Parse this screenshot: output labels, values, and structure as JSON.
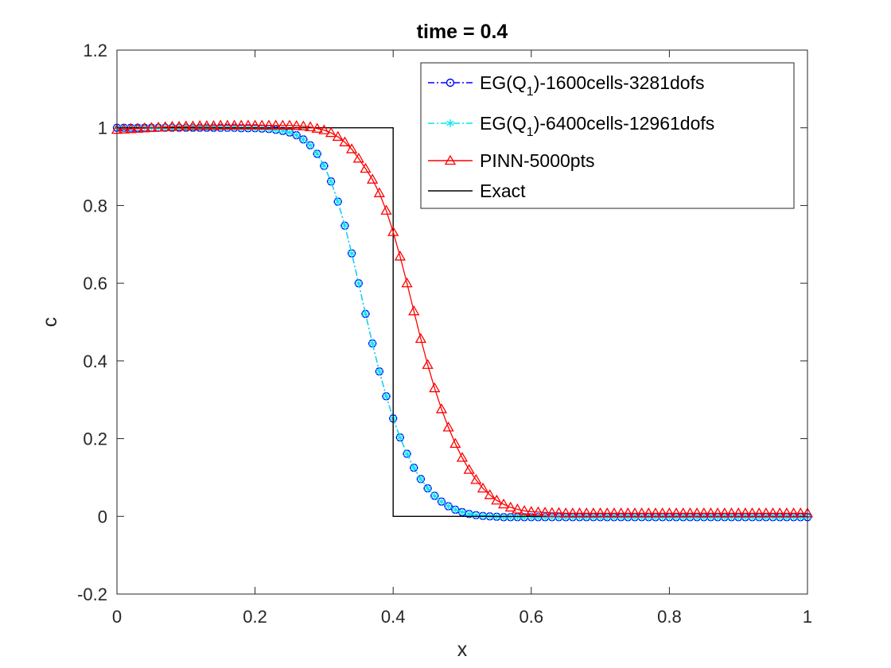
{
  "chart_data": {
    "type": "line",
    "title": "time = 0.4",
    "xlabel": "x",
    "ylabel": "c",
    "xlim": [
      0,
      1
    ],
    "ylim": [
      -0.2,
      1.2
    ],
    "xticks": [
      "0",
      "0.2",
      "0.4",
      "0.6",
      "0.8",
      "1"
    ],
    "yticks": [
      "-0.2",
      "0",
      "0.2",
      "0.4",
      "0.6",
      "0.8",
      "1",
      "1.2"
    ],
    "grid": false,
    "legend_position": "top-right",
    "series": [
      {
        "name": "EG(Q1)-1600cells-3281dofs",
        "legend_label": {
          "prefix": "EG(Q",
          "sub": "1",
          "suffix": ")-1600cells-3281dofs"
        },
        "color": "#0000ff",
        "line_style": "dash-dot",
        "marker": "circle",
        "x": [
          0.0,
          0.01,
          0.02,
          0.03,
          0.04,
          0.05,
          0.06,
          0.07,
          0.08,
          0.09,
          0.1,
          0.11,
          0.12,
          0.13,
          0.14,
          0.15,
          0.16,
          0.17,
          0.18,
          0.19,
          0.2,
          0.21,
          0.22,
          0.23,
          0.24,
          0.25,
          0.26,
          0.27,
          0.28,
          0.29,
          0.3,
          0.31,
          0.32,
          0.33,
          0.34,
          0.35,
          0.36,
          0.37,
          0.38,
          0.39,
          0.4,
          0.41,
          0.42,
          0.43,
          0.44,
          0.45,
          0.46,
          0.47,
          0.48,
          0.49,
          0.5,
          0.51,
          0.52,
          0.53,
          0.54,
          0.55,
          0.56,
          0.57,
          0.58,
          0.59,
          0.6,
          0.61,
          0.62,
          0.63,
          0.64,
          0.65,
          0.66,
          0.67,
          0.68,
          0.69,
          0.7,
          0.71,
          0.72,
          0.73,
          0.74,
          0.75,
          0.76,
          0.77,
          0.78,
          0.79,
          0.8,
          0.81,
          0.82,
          0.83,
          0.84,
          0.85,
          0.86,
          0.87,
          0.88,
          0.89,
          0.9,
          0.91,
          0.92,
          0.93,
          0.94,
          0.95,
          0.96,
          0.97,
          0.98,
          0.99,
          1.0
        ],
        "y": [
          1.0,
          1.0,
          1.0,
          1.0,
          1.0,
          1.0,
          1.0,
          1.0,
          1.0,
          1.0,
          1.0,
          1.0,
          1.0,
          1.0,
          1.0,
          1.0,
          1.0,
          1.0,
          0.999,
          0.999,
          0.999,
          0.998,
          0.997,
          0.995,
          0.992,
          0.988,
          0.981,
          0.97,
          0.955,
          0.933,
          0.902,
          0.862,
          0.81,
          0.748,
          0.677,
          0.6,
          0.521,
          0.445,
          0.373,
          0.309,
          0.252,
          0.203,
          0.161,
          0.125,
          0.096,
          0.072,
          0.053,
          0.038,
          0.026,
          0.017,
          0.011,
          0.006,
          0.003,
          0.001,
          0.0,
          -0.001,
          -0.002,
          -0.002,
          -0.002,
          -0.002,
          -0.002,
          -0.002,
          -0.002,
          -0.002,
          -0.002,
          -0.002,
          -0.002,
          -0.002,
          -0.002,
          -0.002,
          -0.002,
          -0.002,
          -0.002,
          -0.002,
          -0.002,
          -0.002,
          -0.002,
          -0.002,
          -0.002,
          -0.002,
          -0.002,
          -0.002,
          -0.002,
          -0.002,
          -0.002,
          -0.002,
          -0.002,
          -0.002,
          -0.002,
          -0.002,
          -0.002,
          -0.002,
          -0.002,
          -0.002,
          -0.002,
          -0.002,
          -0.002,
          -0.002,
          -0.002,
          -0.002,
          -0.002
        ]
      },
      {
        "name": "EG(Q1)-6400cells-12961dofs",
        "legend_label": {
          "prefix": "EG(Q",
          "sub": "1",
          "suffix": ")-6400cells-12961dofs"
        },
        "color": "#00e5ee",
        "line_style": "dash-dot",
        "marker": "asterisk",
        "x": [
          0.0,
          0.01,
          0.02,
          0.03,
          0.04,
          0.05,
          0.06,
          0.07,
          0.08,
          0.09,
          0.1,
          0.11,
          0.12,
          0.13,
          0.14,
          0.15,
          0.16,
          0.17,
          0.18,
          0.19,
          0.2,
          0.21,
          0.22,
          0.23,
          0.24,
          0.25,
          0.26,
          0.27,
          0.28,
          0.29,
          0.3,
          0.31,
          0.32,
          0.33,
          0.34,
          0.35,
          0.36,
          0.37,
          0.38,
          0.39,
          0.4,
          0.41,
          0.42,
          0.43,
          0.44,
          0.45,
          0.46,
          0.47,
          0.48,
          0.49,
          0.5,
          0.51,
          0.52,
          0.53,
          0.54,
          0.55,
          0.56,
          0.57,
          0.58,
          0.59,
          0.6,
          0.61,
          0.62,
          0.63,
          0.64,
          0.65,
          0.66,
          0.67,
          0.68,
          0.69,
          0.7,
          0.71,
          0.72,
          0.73,
          0.74,
          0.75,
          0.76,
          0.77,
          0.78,
          0.79,
          0.8,
          0.81,
          0.82,
          0.83,
          0.84,
          0.85,
          0.86,
          0.87,
          0.88,
          0.89,
          0.9,
          0.91,
          0.92,
          0.93,
          0.94,
          0.95,
          0.96,
          0.97,
          0.98,
          0.99,
          1.0
        ],
        "y": [
          1.0,
          1.0,
          1.0,
          1.0,
          1.0,
          1.0,
          1.0,
          1.0,
          1.0,
          1.0,
          1.0,
          1.0,
          1.0,
          1.0,
          1.0,
          1.0,
          1.0,
          1.0,
          0.999,
          0.999,
          0.999,
          0.998,
          0.997,
          0.995,
          0.992,
          0.988,
          0.981,
          0.97,
          0.955,
          0.933,
          0.902,
          0.862,
          0.81,
          0.748,
          0.677,
          0.6,
          0.521,
          0.445,
          0.373,
          0.309,
          0.252,
          0.203,
          0.161,
          0.125,
          0.096,
          0.072,
          0.053,
          0.038,
          0.026,
          0.017,
          0.011,
          0.006,
          0.003,
          0.001,
          0.0,
          -0.001,
          -0.002,
          -0.002,
          -0.002,
          -0.002,
          -0.002,
          -0.002,
          -0.002,
          -0.002,
          -0.002,
          -0.002,
          -0.002,
          -0.002,
          -0.002,
          -0.002,
          -0.002,
          -0.002,
          -0.002,
          -0.002,
          -0.002,
          -0.002,
          -0.002,
          -0.002,
          -0.002,
          -0.002,
          -0.002,
          -0.002,
          -0.002,
          -0.002,
          -0.002,
          -0.002,
          -0.002,
          -0.002,
          -0.002,
          -0.002,
          -0.002,
          -0.002,
          -0.002,
          -0.002,
          -0.002,
          -0.002,
          -0.002,
          -0.002,
          -0.002,
          -0.002,
          -0.002
        ]
      },
      {
        "name": "PINN-5000pts",
        "color": "#ff0000",
        "line_style": "solid",
        "marker": "triangle",
        "x": [
          0.0,
          0.01,
          0.02,
          0.03,
          0.04,
          0.05,
          0.06,
          0.07,
          0.08,
          0.09,
          0.1,
          0.11,
          0.12,
          0.13,
          0.14,
          0.15,
          0.16,
          0.17,
          0.18,
          0.19,
          0.2,
          0.21,
          0.22,
          0.23,
          0.24,
          0.25,
          0.26,
          0.27,
          0.28,
          0.29,
          0.3,
          0.31,
          0.32,
          0.33,
          0.34,
          0.35,
          0.36,
          0.37,
          0.38,
          0.39,
          0.4,
          0.41,
          0.42,
          0.43,
          0.44,
          0.45,
          0.46,
          0.47,
          0.48,
          0.49,
          0.5,
          0.51,
          0.52,
          0.53,
          0.54,
          0.55,
          0.56,
          0.57,
          0.58,
          0.59,
          0.6,
          0.61,
          0.62,
          0.63,
          0.64,
          0.65,
          0.66,
          0.67,
          0.68,
          0.69,
          0.7,
          0.71,
          0.72,
          0.73,
          0.74,
          0.75,
          0.76,
          0.77,
          0.78,
          0.79,
          0.8,
          0.81,
          0.82,
          0.83,
          0.84,
          0.85,
          0.86,
          0.87,
          0.88,
          0.89,
          0.9,
          0.91,
          0.92,
          0.93,
          0.94,
          0.95,
          0.96,
          0.97,
          0.98,
          0.99,
          1.0
        ],
        "y": [
          0.995,
          0.996,
          0.997,
          0.998,
          0.999,
          1.0,
          1.001,
          1.002,
          1.003,
          1.003,
          1.004,
          1.004,
          1.005,
          1.005,
          1.005,
          1.006,
          1.006,
          1.006,
          1.006,
          1.006,
          1.006,
          1.006,
          1.006,
          1.006,
          1.006,
          1.006,
          1.005,
          1.004,
          1.002,
          0.998,
          0.994,
          0.987,
          0.977,
          0.963,
          0.945,
          0.921,
          0.895,
          0.867,
          0.832,
          0.787,
          0.732,
          0.669,
          0.6,
          0.528,
          0.457,
          0.39,
          0.33,
          0.276,
          0.229,
          0.187,
          0.151,
          0.12,
          0.094,
          0.072,
          0.055,
          0.041,
          0.031,
          0.023,
          0.018,
          0.014,
          0.012,
          0.011,
          0.01,
          0.009,
          0.009,
          0.008,
          0.008,
          0.008,
          0.008,
          0.008,
          0.008,
          0.008,
          0.008,
          0.008,
          0.008,
          0.008,
          0.008,
          0.008,
          0.008,
          0.008,
          0.008,
          0.008,
          0.008,
          0.008,
          0.008,
          0.008,
          0.008,
          0.008,
          0.008,
          0.008,
          0.008,
          0.008,
          0.008,
          0.008,
          0.008,
          0.008,
          0.008,
          0.008,
          0.008,
          0.008,
          0.008
        ]
      },
      {
        "name": "Exact",
        "color": "#000000",
        "line_style": "solid",
        "marker": "none",
        "x": [
          0,
          0.4,
          0.4,
          1
        ],
        "y": [
          1,
          1,
          0,
          0
        ]
      }
    ]
  }
}
